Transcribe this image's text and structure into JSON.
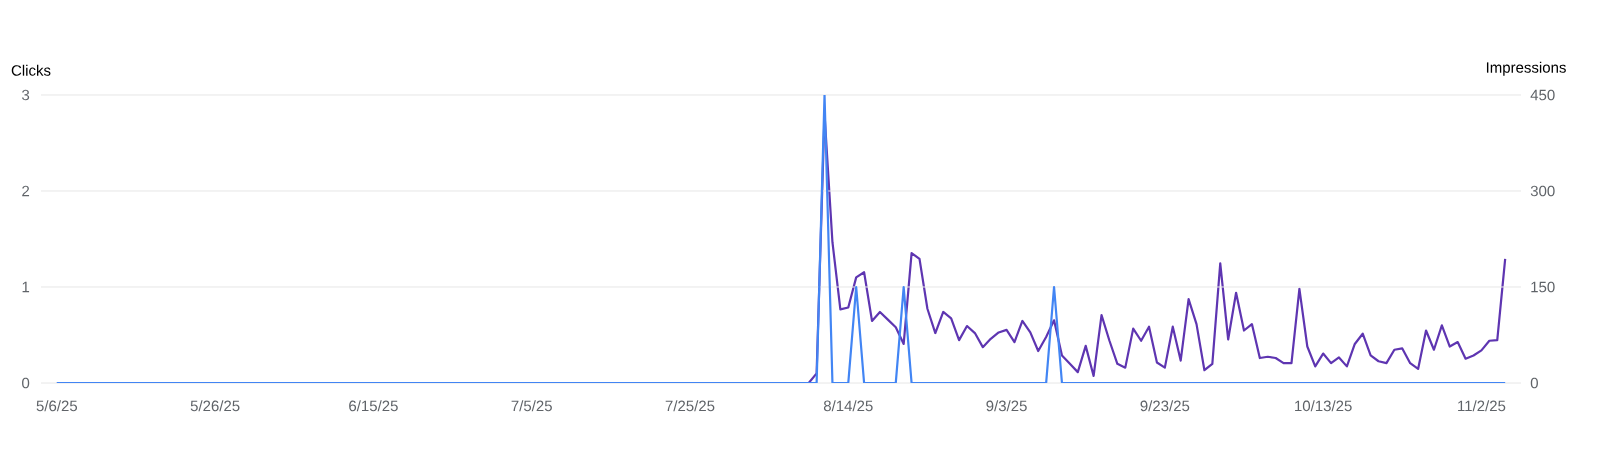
{
  "chart_data": {
    "type": "line",
    "ylabel": "Clicks",
    "y2label": "Impressions",
    "xlim": [
      "2025-05-04",
      "2025-11-07"
    ],
    "xticks": [
      {
        "value": "2025-05-06",
        "label": "5/6/25"
      },
      {
        "value": "2025-05-26",
        "label": "5/26/25"
      },
      {
        "value": "2025-06-15",
        "label": "6/15/25"
      },
      {
        "value": "2025-07-05",
        "label": "7/5/25"
      },
      {
        "value": "2025-07-25",
        "label": "7/25/25"
      },
      {
        "value": "2025-08-14",
        "label": "8/14/25"
      },
      {
        "value": "2025-09-03",
        "label": "9/3/25"
      },
      {
        "value": "2025-09-23",
        "label": "9/23/25"
      },
      {
        "value": "2025-10-13",
        "label": "10/13/25"
      },
      {
        "value": "2025-11-02",
        "label": "11/2/25"
      }
    ],
    "ylim": [
      0,
      3
    ],
    "yticks": [
      0,
      1,
      2,
      3
    ],
    "y2lim": [
      0,
      450
    ],
    "y2ticks": [
      0,
      150,
      300,
      450
    ],
    "grid": "y",
    "series": [
      {
        "axis": "y2",
        "color": "#5e35b1",
        "x": [
          "2025-05-06",
          "2025-08-08",
          "2025-08-09",
          "2025-08-10",
          "2025-08-11",
          "2025-08-12",
          "2025-08-13",
          "2025-08-14",
          "2025-08-15",
          "2025-08-16",
          "2025-08-17",
          "2025-08-18",
          "2025-08-19",
          "2025-08-20",
          "2025-08-21",
          "2025-08-22",
          "2025-08-23",
          "2025-08-24",
          "2025-08-25",
          "2025-08-26",
          "2025-08-27",
          "2025-08-28",
          "2025-08-29",
          "2025-08-30",
          "2025-08-31",
          "2025-09-01",
          "2025-09-02",
          "2025-09-03",
          "2025-09-04",
          "2025-09-05",
          "2025-09-06",
          "2025-09-07",
          "2025-09-08",
          "2025-09-09",
          "2025-09-10",
          "2025-09-11",
          "2025-09-12",
          "2025-09-13",
          "2025-09-14",
          "2025-09-15",
          "2025-09-16",
          "2025-09-17",
          "2025-09-18",
          "2025-09-19",
          "2025-09-20",
          "2025-09-21",
          "2025-09-22",
          "2025-09-23",
          "2025-09-24",
          "2025-09-25",
          "2025-09-26",
          "2025-09-27",
          "2025-09-28",
          "2025-09-29",
          "2025-09-30",
          "2025-10-01",
          "2025-10-02",
          "2025-10-03",
          "2025-10-04",
          "2025-10-05",
          "2025-10-06",
          "2025-10-07",
          "2025-10-08",
          "2025-10-09",
          "2025-10-10",
          "2025-10-11",
          "2025-10-12",
          "2025-10-13",
          "2025-10-14",
          "2025-10-15",
          "2025-10-16",
          "2025-10-17",
          "2025-10-18",
          "2025-10-19",
          "2025-10-20",
          "2025-10-21",
          "2025-10-22",
          "2025-10-23",
          "2025-10-24",
          "2025-10-25",
          "2025-10-26",
          "2025-10-27",
          "2025-10-28",
          "2025-10-29",
          "2025-10-30",
          "2025-10-31",
          "2025-11-01",
          "2025-11-02",
          "2025-11-03",
          "2025-11-04",
          "2025-11-05"
        ],
        "values": [
          0,
          0,
          0,
          15,
          420,
          220,
          115,
          118,
          165,
          173,
          97,
          111,
          99,
          87,
          61,
          203,
          194,
          116,
          78,
          111,
          101,
          67,
          89,
          78,
          56,
          69,
          79,
          83,
          64,
          97,
          79,
          50,
          72,
          98,
          43,
          30,
          17,
          58,
          11,
          106,
          66,
          30,
          24,
          85,
          66,
          88,
          32,
          24,
          88,
          35,
          131,
          92,
          20,
          30,
          187,
          68,
          141,
          82,
          92,
          39,
          41,
          39,
          31,
          31,
          147,
          57,
          26,
          46,
          31,
          40,
          26,
          61,
          77,
          43,
          34,
          31,
          52,
          54,
          31,
          22,
          82,
          52,
          90,
          57,
          64,
          38,
          43,
          51,
          66,
          67,
          194
        ]
      },
      {
        "axis": "y",
        "color": "#4285f4",
        "x": [
          "2025-05-06",
          "2025-08-10",
          "2025-08-11",
          "2025-08-12",
          "2025-08-14",
          "2025-08-15",
          "2025-08-16",
          "2025-08-20",
          "2025-08-21",
          "2025-08-22",
          "2025-09-08",
          "2025-09-09",
          "2025-09-10",
          "2025-11-05"
        ],
        "values": [
          0,
          0,
          3,
          0,
          0,
          1,
          0,
          0,
          1,
          0,
          0,
          1,
          0,
          0
        ]
      }
    ]
  }
}
